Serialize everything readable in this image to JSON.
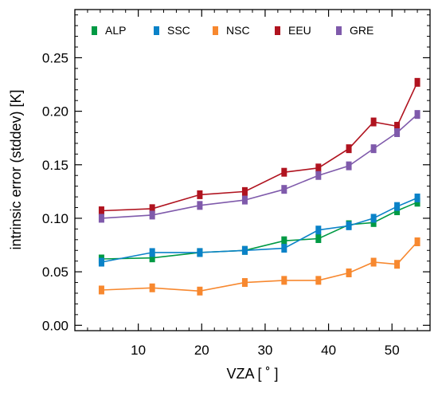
{
  "chart_data": {
    "type": "line",
    "xlabel": "VZA [ ˚ ]",
    "ylabel": "intrinsic error (stddev) [K]",
    "xlim": [
      0,
      56
    ],
    "ylim": [
      -0.005,
      0.295
    ],
    "xticks": [
      10,
      20,
      30,
      40,
      50
    ],
    "xtick_labels": [
      "10",
      "20",
      "30",
      "40",
      "50"
    ],
    "yticks": [
      0.0,
      0.05,
      0.1,
      0.15,
      0.2,
      0.25
    ],
    "ytick_labels": [
      "0.00",
      "0.05",
      "0.10",
      "0.15",
      "0.20",
      "0.25"
    ],
    "grid": false,
    "legend_position": "top",
    "x": [
      4.2,
      12.2,
      19.7,
      26.8,
      33.0,
      38.4,
      43.2,
      47.1,
      50.8,
      54.0
    ],
    "series": [
      {
        "name": "ALP",
        "color": "#009a44",
        "values": [
          0.062,
          0.063,
          0.068,
          0.07,
          0.079,
          0.081,
          0.094,
          0.096,
          0.107,
          0.115
        ]
      },
      {
        "name": "SSC",
        "color": "#0a82c8",
        "values": [
          0.059,
          0.068,
          0.068,
          0.07,
          0.072,
          0.089,
          0.093,
          0.1,
          0.111,
          0.119
        ]
      },
      {
        "name": "NSC",
        "color": "#f7882f",
        "values": [
          0.033,
          0.035,
          0.032,
          0.04,
          0.042,
          0.042,
          0.049,
          0.059,
          0.057,
          0.078
        ]
      },
      {
        "name": "EEU",
        "color": "#b0131f",
        "values": [
          0.107,
          0.109,
          0.122,
          0.125,
          0.143,
          0.147,
          0.165,
          0.19,
          0.186,
          0.227
        ]
      },
      {
        "name": "GRE",
        "color": "#7f5aab",
        "values": [
          0.1,
          0.103,
          0.112,
          0.117,
          0.127,
          0.14,
          0.149,
          0.165,
          0.18,
          0.197
        ]
      }
    ]
  }
}
